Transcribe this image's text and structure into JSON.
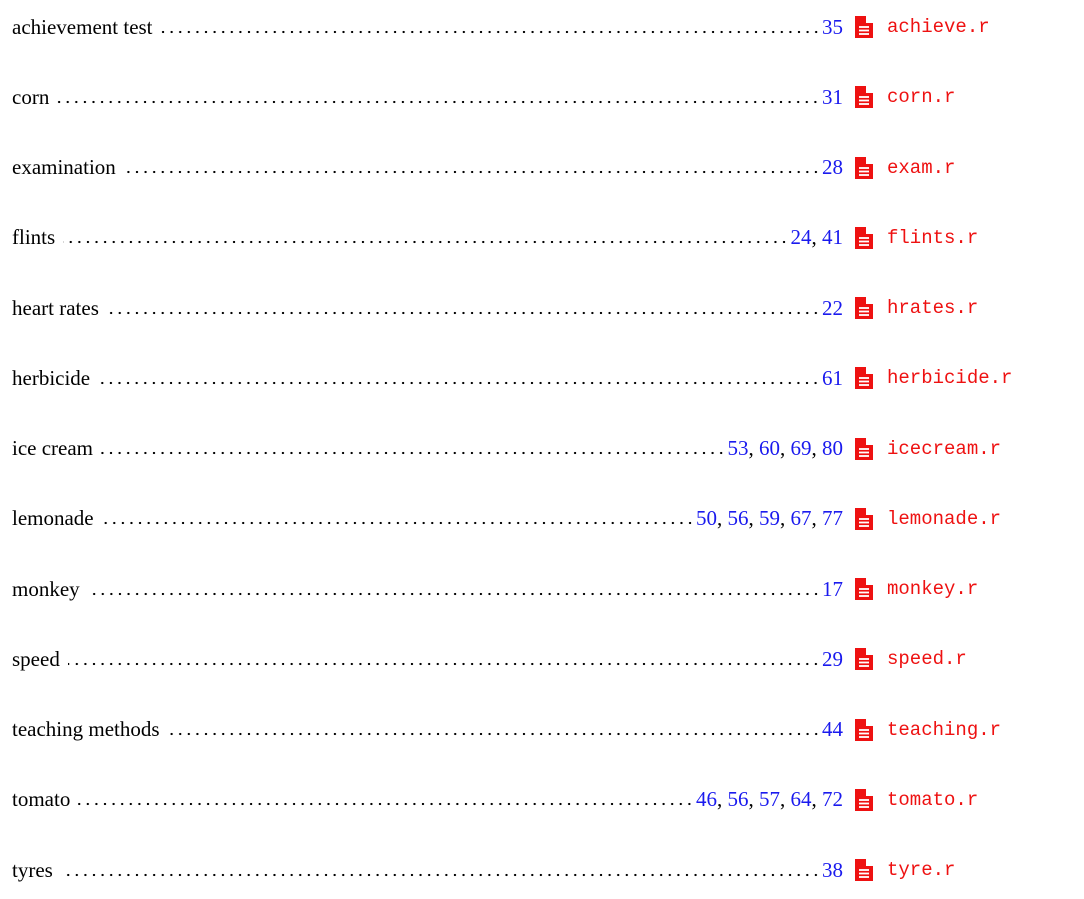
{
  "entries": [
    {
      "name": "achievement test",
      "pages": [
        35
      ],
      "file": "achieve.r"
    },
    {
      "name": "corn",
      "pages": [
        31
      ],
      "file": "corn.r"
    },
    {
      "name": "examination",
      "pages": [
        28
      ],
      "file": "exam.r"
    },
    {
      "name": "flints",
      "pages": [
        24,
        41
      ],
      "file": "flints.r"
    },
    {
      "name": "heart rates",
      "pages": [
        22
      ],
      "file": "hrates.r"
    },
    {
      "name": "herbicide",
      "pages": [
        61
      ],
      "file": "herbicide.r"
    },
    {
      "name": "ice cream",
      "pages": [
        53,
        60,
        69,
        80
      ],
      "file": "icecream.r"
    },
    {
      "name": "lemonade",
      "pages": [
        50,
        56,
        59,
        67,
        77
      ],
      "file": "lemonade.r"
    },
    {
      "name": "monkey",
      "pages": [
        17
      ],
      "file": "monkey.r"
    },
    {
      "name": "speed",
      "pages": [
        29
      ],
      "file": "speed.r"
    },
    {
      "name": "teaching methods",
      "pages": [
        44
      ],
      "file": "teaching.r"
    },
    {
      "name": "tomato",
      "pages": [
        46,
        56,
        57,
        64,
        72
      ],
      "file": "tomato.r"
    },
    {
      "name": "tyres",
      "pages": [
        38
      ],
      "file": "tyre.r"
    }
  ]
}
